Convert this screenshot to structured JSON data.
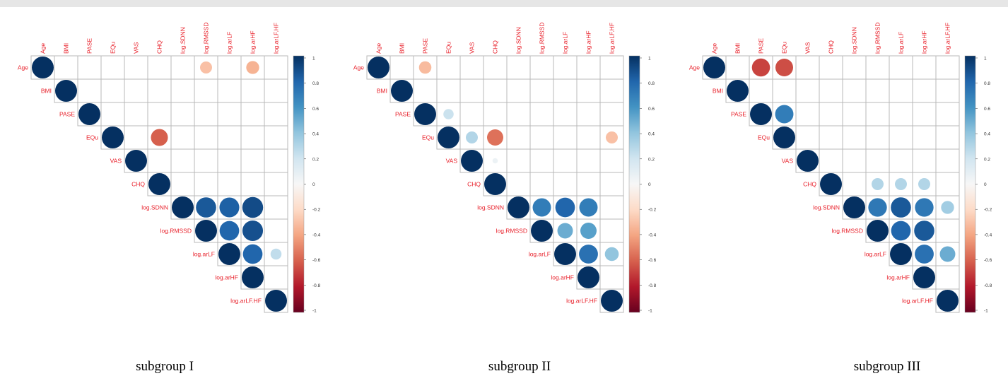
{
  "chart_data": {
    "type": "heatmap",
    "variables": [
      "Age",
      "BMI",
      "PASE",
      "EQu",
      "VAS",
      "CHQ",
      "log.SDNN",
      "log.RMSSD",
      "log.arLF",
      "log.arHF",
      "log.arLF.HF"
    ],
    "legend_ticks": [
      "1",
      "0.8",
      "0.6",
      "0.4",
      "0.2",
      "0",
      "-0.2",
      "-0.4",
      "-0.6",
      "-0.8",
      "-1"
    ],
    "legend_range": [
      -1,
      1
    ],
    "colors": {
      "label": "#e8202a",
      "grid": "#b8b8b8",
      "strong_positive": "#053061",
      "negative": "#b2182b"
    },
    "panels": [
      {
        "caption": "subgroup I",
        "correlations": [
          {
            "row": "Age",
            "col": "log.RMSSD",
            "r": -0.3
          },
          {
            "row": "Age",
            "col": "log.arHF",
            "r": -0.35
          },
          {
            "row": "EQu",
            "col": "CHQ",
            "r": -0.6
          },
          {
            "row": "log.SDNN",
            "col": "log.RMSSD",
            "r": 0.85
          },
          {
            "row": "log.SDNN",
            "col": "log.arLF",
            "r": 0.82
          },
          {
            "row": "log.SDNN",
            "col": "log.arHF",
            "r": 0.9
          },
          {
            "row": "log.RMSSD",
            "col": "log.arLF",
            "r": 0.8
          },
          {
            "row": "log.RMSSD",
            "col": "log.arHF",
            "r": 0.88
          },
          {
            "row": "log.arLF",
            "col": "log.arHF",
            "r": 0.8
          },
          {
            "row": "log.arLF",
            "col": "log.arLF.HF",
            "r": 0.25
          }
        ]
      },
      {
        "caption": "subgroup II",
        "correlations": [
          {
            "row": "Age",
            "col": "PASE",
            "r": -0.32
          },
          {
            "row": "PASE",
            "col": "EQu",
            "r": 0.22
          },
          {
            "row": "EQu",
            "col": "VAS",
            "r": 0.3
          },
          {
            "row": "EQu",
            "col": "CHQ",
            "r": -0.55
          },
          {
            "row": "EQu",
            "col": "log.arLF.HF",
            "r": -0.3
          },
          {
            "row": "VAS",
            "col": "CHQ",
            "r": 0.06
          },
          {
            "row": "log.SDNN",
            "col": "log.RMSSD",
            "r": 0.7
          },
          {
            "row": "log.SDNN",
            "col": "log.arLF",
            "r": 0.8
          },
          {
            "row": "log.SDNN",
            "col": "log.arHF",
            "r": 0.7
          },
          {
            "row": "log.RMSSD",
            "col": "log.arLF",
            "r": 0.5
          },
          {
            "row": "log.RMSSD",
            "col": "log.arHF",
            "r": 0.55
          },
          {
            "row": "log.arLF",
            "col": "log.arHF",
            "r": 0.75
          },
          {
            "row": "log.arLF",
            "col": "log.arLF.HF",
            "r": 0.4
          }
        ]
      },
      {
        "caption": "subgroup III",
        "correlations": [
          {
            "row": "Age",
            "col": "PASE",
            "r": -0.68
          },
          {
            "row": "Age",
            "col": "EQu",
            "r": -0.65
          },
          {
            "row": "PASE",
            "col": "EQu",
            "r": 0.7
          },
          {
            "row": "CHQ",
            "col": "log.RMSSD",
            "r": 0.3
          },
          {
            "row": "CHQ",
            "col": "log.arLF",
            "r": 0.3
          },
          {
            "row": "CHQ",
            "col": "log.arHF",
            "r": 0.3
          },
          {
            "row": "log.SDNN",
            "col": "log.RMSSD",
            "r": 0.72
          },
          {
            "row": "log.SDNN",
            "col": "log.arLF",
            "r": 0.85
          },
          {
            "row": "log.SDNN",
            "col": "log.arHF",
            "r": 0.72
          },
          {
            "row": "log.SDNN",
            "col": "log.arLF.HF",
            "r": 0.35
          },
          {
            "row": "log.RMSSD",
            "col": "log.arLF",
            "r": 0.8
          },
          {
            "row": "log.RMSSD",
            "col": "log.arHF",
            "r": 0.85
          },
          {
            "row": "log.arLF",
            "col": "log.arHF",
            "r": 0.75
          },
          {
            "row": "log.arLF",
            "col": "log.arLF.HF",
            "r": 0.5
          }
        ]
      }
    ]
  }
}
